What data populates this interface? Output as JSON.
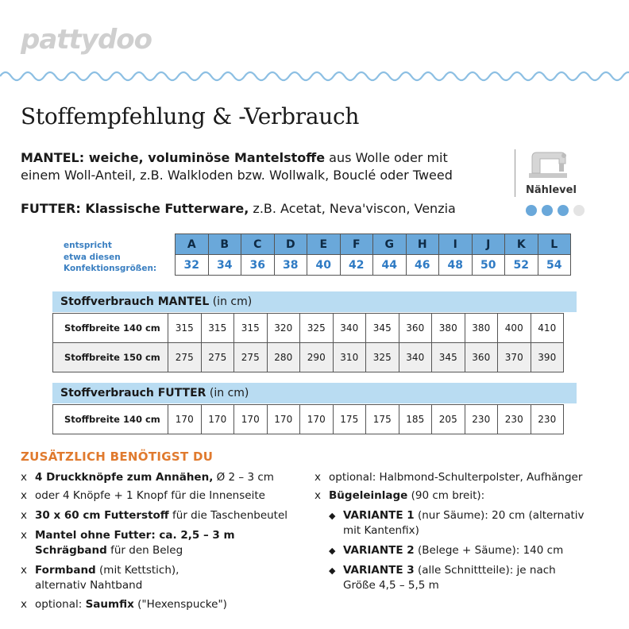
{
  "brand": "pattydoo",
  "title": "Stoffempfehlung & -Verbrauch",
  "mantel": {
    "bold": "MANTEL: weiche, voluminöse Mantelstoffe",
    "rest": " aus Wolle oder mit",
    "line2": "einem Woll-Anteil, z.B. Walkloden bzw. Wollwalk, Bouclé oder Tweed"
  },
  "futter": {
    "bold": "FUTTER: Klassische Futterware,",
    "rest": " z.B. Acetat, Neva'viscon, Venzia"
  },
  "level": {
    "label": "Nählevel",
    "filled": 3,
    "total": 4,
    "icon": "sewing-machine-icon"
  },
  "sizes": {
    "caption": [
      "entspricht",
      "etwa diesen",
      "Konfektionsgrößen:"
    ],
    "letters": [
      "A",
      "B",
      "C",
      "D",
      "E",
      "F",
      "G",
      "H",
      "I",
      "J",
      "K",
      "L"
    ],
    "numbers": [
      "32",
      "34",
      "36",
      "38",
      "40",
      "42",
      "44",
      "46",
      "48",
      "50",
      "52",
      "54"
    ]
  },
  "mantel_usage": {
    "heading_bold": "Stoffverbrauch MANTEL",
    "heading_rest": "  (in cm)",
    "rows": [
      {
        "label": "Stoffbreite 140 cm",
        "values": [
          "315",
          "315",
          "315",
          "320",
          "325",
          "340",
          "345",
          "360",
          "380",
          "380",
          "400",
          "410"
        ]
      },
      {
        "label": "Stoffbreite 150 cm",
        "values": [
          "275",
          "275",
          "275",
          "280",
          "290",
          "310",
          "325",
          "340",
          "345",
          "360",
          "370",
          "390"
        ]
      }
    ]
  },
  "futter_usage": {
    "heading_bold": "Stoffverbrauch FUTTER",
    "heading_rest": "  (in cm)",
    "rows": [
      {
        "label": "Stoffbreite 140 cm",
        "values": [
          "170",
          "170",
          "170",
          "170",
          "170",
          "175",
          "175",
          "185",
          "205",
          "230",
          "230",
          "230"
        ]
      }
    ]
  },
  "extras": {
    "title": "ZUSÄTZLICH BENÖTIGST DU",
    "marker": "x",
    "left": [
      {
        "bold": "4 Druckknöpfe zum Annähen,",
        "rest": " Ø 2 – 3 cm"
      },
      {
        "bold": "",
        "rest": "oder 4 Knöpfe + 1 Knopf für die Innenseite"
      },
      {
        "bold": "30 x 60 cm Futterstoff",
        "rest": " für die Taschenbeutel"
      },
      {
        "bold": "Mantel ohne Futter: ca. 2,5 – 3 m",
        "rest": ""
      },
      {
        "bold": "Formband",
        "rest": " (mit Kettstich),"
      },
      {
        "bold": "",
        "rest": "optional: "
      }
    ],
    "left_cont": {
      "schraegband_bold": "Schrägband",
      "schraegband_rest": " für den Beleg",
      "formband_line2": "alternativ Nahtband",
      "saumfix_bold": "Saumfix",
      "saumfix_rest": " (\"Hexenspucke\")"
    },
    "right": {
      "optional": "optional: Halbmond-Schulterpolster, Aufhänger",
      "buegel_bold": "Bügeleinlage",
      "buegel_rest": " (90 cm breit):",
      "v1_bold": "VARIANTE 1",
      "v1_rest": " (nur Säume): 20 cm (alternativ",
      "v1_line2": "mit Kantenfix)",
      "v2_bold": "VARIANTE 2",
      "v2_rest": " (Belege + Säume): 140 cm",
      "v3_bold": "VARIANTE 3",
      "v3_rest": " (alle Schnittteile): je nach",
      "v3_line2": "Größe 4,5 – 5,5 m",
      "diamond": "◆"
    }
  },
  "colors": {
    "accent_blue": "#6aa8da",
    "light_blue": "#b9dcf2",
    "orange": "#e07a2e"
  }
}
